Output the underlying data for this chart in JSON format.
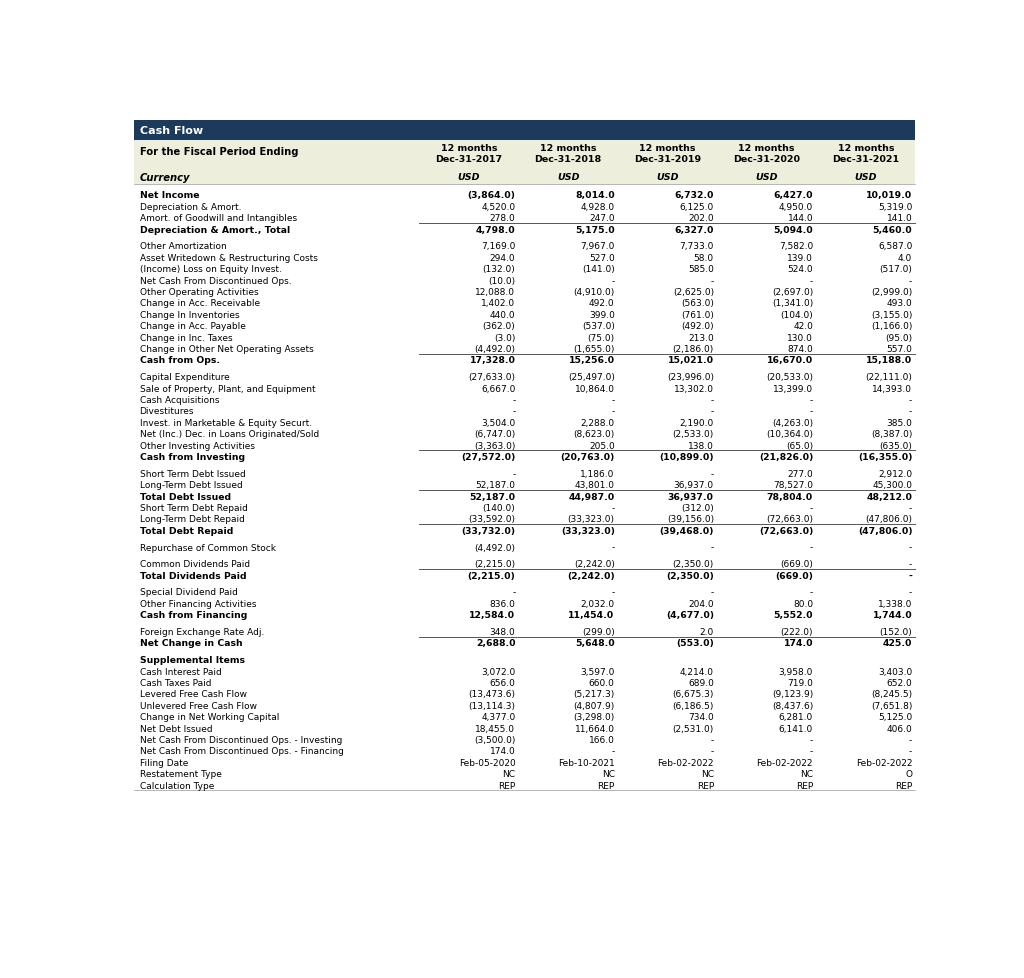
{
  "title": "Cash Flow",
  "header_bg": "#1b3a5c",
  "header_text_color": "#ffffff",
  "subheader_bg": "#eeeedd",
  "row_bg": "#ffffff",
  "col_labels_line1": [
    "For the Fiscal Period Ending",
    "12 months",
    "12 months",
    "12 months",
    "12 months",
    "12 months"
  ],
  "col_labels_line2": [
    "",
    "Dec-31-2017",
    "Dec-31-2018",
    "Dec-31-2019",
    "Dec-31-2020",
    "Dec-31-2021"
  ],
  "col_labels_line3": [
    "Currency",
    "USD",
    "USD",
    "USD",
    "USD",
    "USD"
  ],
  "rows": [
    {
      "label": "Net Income",
      "bold": true,
      "values": [
        "(3,864.0)",
        "8,014.0",
        "6,732.0",
        "6,427.0",
        "10,019.0"
      ],
      "sep_below": false,
      "blank_above": true
    },
    {
      "label": "Depreciation & Amort.",
      "bold": false,
      "values": [
        "4,520.0",
        "4,928.0",
        "6,125.0",
        "4,950.0",
        "5,319.0"
      ],
      "sep_below": false,
      "blank_above": false
    },
    {
      "label": "Amort. of Goodwill and Intangibles",
      "bold": false,
      "values": [
        "278.0",
        "247.0",
        "202.0",
        "144.0",
        "141.0"
      ],
      "sep_below": true,
      "blank_above": false
    },
    {
      "label": "Depreciation & Amort., Total",
      "bold": true,
      "values": [
        "4,798.0",
        "5,175.0",
        "6,327.0",
        "5,094.0",
        "5,460.0"
      ],
      "sep_below": false,
      "blank_above": false
    },
    {
      "label": "Other Amortization",
      "bold": false,
      "values": [
        "7,169.0",
        "7,967.0",
        "7,733.0",
        "7,582.0",
        "6,587.0"
      ],
      "sep_below": false,
      "blank_above": true
    },
    {
      "label": "Asset Writedown & Restructuring Costs",
      "bold": false,
      "values": [
        "294.0",
        "527.0",
        "58.0",
        "139.0",
        "4.0"
      ],
      "sep_below": false,
      "blank_above": false
    },
    {
      "label": "(Income) Loss on Equity Invest.",
      "bold": false,
      "values": [
        "(132.0)",
        "(141.0)",
        "585.0",
        "524.0",
        "(517.0)"
      ],
      "sep_below": false,
      "blank_above": false
    },
    {
      "label": "Net Cash From Discontinued Ops.",
      "bold": false,
      "values": [
        "(10.0)",
        "-",
        "-",
        "-",
        "-"
      ],
      "sep_below": false,
      "blank_above": false
    },
    {
      "label": "Other Operating Activities",
      "bold": false,
      "values": [
        "12,088.0",
        "(4,910.0)",
        "(2,625.0)",
        "(2,697.0)",
        "(2,999.0)"
      ],
      "sep_below": false,
      "blank_above": false
    },
    {
      "label": "Change in Acc. Receivable",
      "bold": false,
      "values": [
        "1,402.0",
        "492.0",
        "(563.0)",
        "(1,341.0)",
        "493.0"
      ],
      "sep_below": false,
      "blank_above": false
    },
    {
      "label": "Change In Inventories",
      "bold": false,
      "values": [
        "440.0",
        "399.0",
        "(761.0)",
        "(104.0)",
        "(3,155.0)"
      ],
      "sep_below": false,
      "blank_above": false
    },
    {
      "label": "Change in Acc. Payable",
      "bold": false,
      "values": [
        "(362.0)",
        "(537.0)",
        "(492.0)",
        "42.0",
        "(1,166.0)"
      ],
      "sep_below": false,
      "blank_above": false
    },
    {
      "label": "Change in Inc. Taxes",
      "bold": false,
      "values": [
        "(3.0)",
        "(75.0)",
        "213.0",
        "130.0",
        "(95.0)"
      ],
      "sep_below": false,
      "blank_above": false
    },
    {
      "label": "Change in Other Net Operating Assets",
      "bold": false,
      "values": [
        "(4,492.0)",
        "(1,655.0)",
        "(2,186.0)",
        "874.0",
        "557.0"
      ],
      "sep_below": true,
      "blank_above": false
    },
    {
      "label": "Cash from Ops.",
      "bold": true,
      "values": [
        "17,328.0",
        "15,256.0",
        "15,021.0",
        "16,670.0",
        "15,188.0"
      ],
      "sep_below": false,
      "blank_above": false
    },
    {
      "label": "Capital Expenditure",
      "bold": false,
      "values": [
        "(27,633.0)",
        "(25,497.0)",
        "(23,996.0)",
        "(20,533.0)",
        "(22,111.0)"
      ],
      "sep_below": false,
      "blank_above": true
    },
    {
      "label": "Sale of Property, Plant, and Equipment",
      "bold": false,
      "values": [
        "6,667.0",
        "10,864.0",
        "13,302.0",
        "13,399.0",
        "14,393.0"
      ],
      "sep_below": false,
      "blank_above": false
    },
    {
      "label": "Cash Acquisitions",
      "bold": false,
      "values": [
        "-",
        "-",
        "-",
        "-",
        "-"
      ],
      "sep_below": false,
      "blank_above": false
    },
    {
      "label": "Divestitures",
      "bold": false,
      "values": [
        "-",
        "-",
        "-",
        "-",
        "-"
      ],
      "sep_below": false,
      "blank_above": false
    },
    {
      "label": "Invest. in Marketable & Equity Securt.",
      "bold": false,
      "values": [
        "3,504.0",
        "2,288.0",
        "2,190.0",
        "(4,263.0)",
        "385.0"
      ],
      "sep_below": false,
      "blank_above": false
    },
    {
      "label": "Net (Inc.) Dec. in Loans Originated/Sold",
      "bold": false,
      "values": [
        "(6,747.0)",
        "(8,623.0)",
        "(2,533.0)",
        "(10,364.0)",
        "(8,387.0)"
      ],
      "sep_below": false,
      "blank_above": false
    },
    {
      "label": "Other Investing Activities",
      "bold": false,
      "values": [
        "(3,363.0)",
        "205.0",
        "138.0",
        "(65.0)",
        "(635.0)"
      ],
      "sep_below": true,
      "blank_above": false
    },
    {
      "label": "Cash from Investing",
      "bold": true,
      "values": [
        "(27,572.0)",
        "(20,763.0)",
        "(10,899.0)",
        "(21,826.0)",
        "(16,355.0)"
      ],
      "sep_below": false,
      "blank_above": false
    },
    {
      "label": "Short Term Debt Issued",
      "bold": false,
      "values": [
        "-",
        "1,186.0",
        "-",
        "277.0",
        "2,912.0"
      ],
      "sep_below": false,
      "blank_above": true
    },
    {
      "label": "Long-Term Debt Issued",
      "bold": false,
      "values": [
        "52,187.0",
        "43,801.0",
        "36,937.0",
        "78,527.0",
        "45,300.0"
      ],
      "sep_below": true,
      "blank_above": false
    },
    {
      "label": "Total Debt Issued",
      "bold": true,
      "values": [
        "52,187.0",
        "44,987.0",
        "36,937.0",
        "78,804.0",
        "48,212.0"
      ],
      "sep_below": false,
      "blank_above": false
    },
    {
      "label": "Short Term Debt Repaid",
      "bold": false,
      "values": [
        "(140.0)",
        "-",
        "(312.0)",
        "-",
        "-"
      ],
      "sep_below": false,
      "blank_above": false
    },
    {
      "label": "Long-Term Debt Repaid",
      "bold": false,
      "values": [
        "(33,592.0)",
        "(33,323.0)",
        "(39,156.0)",
        "(72,663.0)",
        "(47,806.0)"
      ],
      "sep_below": true,
      "blank_above": false
    },
    {
      "label": "Total Debt Repaid",
      "bold": true,
      "values": [
        "(33,732.0)",
        "(33,323.0)",
        "(39,468.0)",
        "(72,663.0)",
        "(47,806.0)"
      ],
      "sep_below": false,
      "blank_above": false
    },
    {
      "label": "Repurchase of Common Stock",
      "bold": false,
      "values": [
        "(4,492.0)",
        "-",
        "-",
        "-",
        "-"
      ],
      "sep_below": false,
      "blank_above": true
    },
    {
      "label": "Common Dividends Paid",
      "bold": false,
      "values": [
        "(2,215.0)",
        "(2,242.0)",
        "(2,350.0)",
        "(669.0)",
        "-"
      ],
      "sep_below": true,
      "blank_above": true
    },
    {
      "label": "Total Dividends Paid",
      "bold": true,
      "values": [
        "(2,215.0)",
        "(2,242.0)",
        "(2,350.0)",
        "(669.0)",
        "-"
      ],
      "sep_below": false,
      "blank_above": false
    },
    {
      "label": "Special Dividend Paid",
      "bold": false,
      "values": [
        "-",
        "-",
        "-",
        "-",
        "-"
      ],
      "sep_below": false,
      "blank_above": true
    },
    {
      "label": "Other Financing Activities",
      "bold": false,
      "values": [
        "836.0",
        "2,032.0",
        "204.0",
        "80.0",
        "1,338.0"
      ],
      "sep_below": false,
      "blank_above": false
    },
    {
      "label": "Cash from Financing",
      "bold": true,
      "values": [
        "12,584.0",
        "11,454.0",
        "(4,677.0)",
        "5,552.0",
        "1,744.0"
      ],
      "sep_below": false,
      "blank_above": false
    },
    {
      "label": "Foreign Exchange Rate Adj.",
      "bold": false,
      "values": [
        "348.0",
        "(299.0)",
        "2.0",
        "(222.0)",
        "(152.0)"
      ],
      "sep_below": true,
      "blank_above": true
    },
    {
      "label": "Net Change in Cash",
      "bold": true,
      "values": [
        "2,688.0",
        "5,648.0",
        "(553.0)",
        "174.0",
        "425.0"
      ],
      "sep_below": false,
      "blank_above": false
    },
    {
      "label": "Supplemental Items",
      "bold": true,
      "values": [
        "",
        "",
        "",
        "",
        ""
      ],
      "sep_below": false,
      "blank_above": true
    },
    {
      "label": "Cash Interest Paid",
      "bold": false,
      "values": [
        "3,072.0",
        "3,597.0",
        "4,214.0",
        "3,958.0",
        "3,403.0"
      ],
      "sep_below": false,
      "blank_above": false
    },
    {
      "label": "Cash Taxes Paid",
      "bold": false,
      "values": [
        "656.0",
        "660.0",
        "689.0",
        "719.0",
        "652.0"
      ],
      "sep_below": false,
      "blank_above": false
    },
    {
      "label": "Levered Free Cash Flow",
      "bold": false,
      "values": [
        "(13,473.6)",
        "(5,217.3)",
        "(6,675.3)",
        "(9,123.9)",
        "(8,245.5)"
      ],
      "sep_below": false,
      "blank_above": false
    },
    {
      "label": "Unlevered Free Cash Flow",
      "bold": false,
      "values": [
        "(13,114.3)",
        "(4,807.9)",
        "(6,186.5)",
        "(8,437.6)",
        "(7,651.8)"
      ],
      "sep_below": false,
      "blank_above": false
    },
    {
      "label": "Change in Net Working Capital",
      "bold": false,
      "values": [
        "4,377.0",
        "(3,298.0)",
        "734.0",
        "6,281.0",
        "5,125.0"
      ],
      "sep_below": false,
      "blank_above": false
    },
    {
      "label": "Net Debt Issued",
      "bold": false,
      "values": [
        "18,455.0",
        "11,664.0",
        "(2,531.0)",
        "6,141.0",
        "406.0"
      ],
      "sep_below": false,
      "blank_above": false
    },
    {
      "label": "Net Cash From Discontinued Ops. - Investing",
      "bold": false,
      "values": [
        "(3,500.0)",
        "166.0",
        "-",
        "-",
        "-"
      ],
      "sep_below": false,
      "blank_above": false
    },
    {
      "label": "Net Cash From Discontinued Ops. - Financing",
      "bold": false,
      "values": [
        "174.0",
        "-",
        "-",
        "-",
        "-"
      ],
      "sep_below": false,
      "blank_above": false
    },
    {
      "label": "Filing Date",
      "bold": false,
      "values": [
        "Feb-05-2020",
        "Feb-10-2021",
        "Feb-02-2022",
        "Feb-02-2022",
        "Feb-02-2022"
      ],
      "sep_below": false,
      "blank_above": false
    },
    {
      "label": "Restatement Type",
      "bold": false,
      "values": [
        "NC",
        "NC",
        "NC",
        "NC",
        "O"
      ],
      "sep_below": false,
      "blank_above": false
    },
    {
      "label": "Calculation Type",
      "bold": false,
      "values": [
        "REP",
        "REP",
        "REP",
        "REP",
        "REP"
      ],
      "sep_below": false,
      "blank_above": false
    }
  ]
}
